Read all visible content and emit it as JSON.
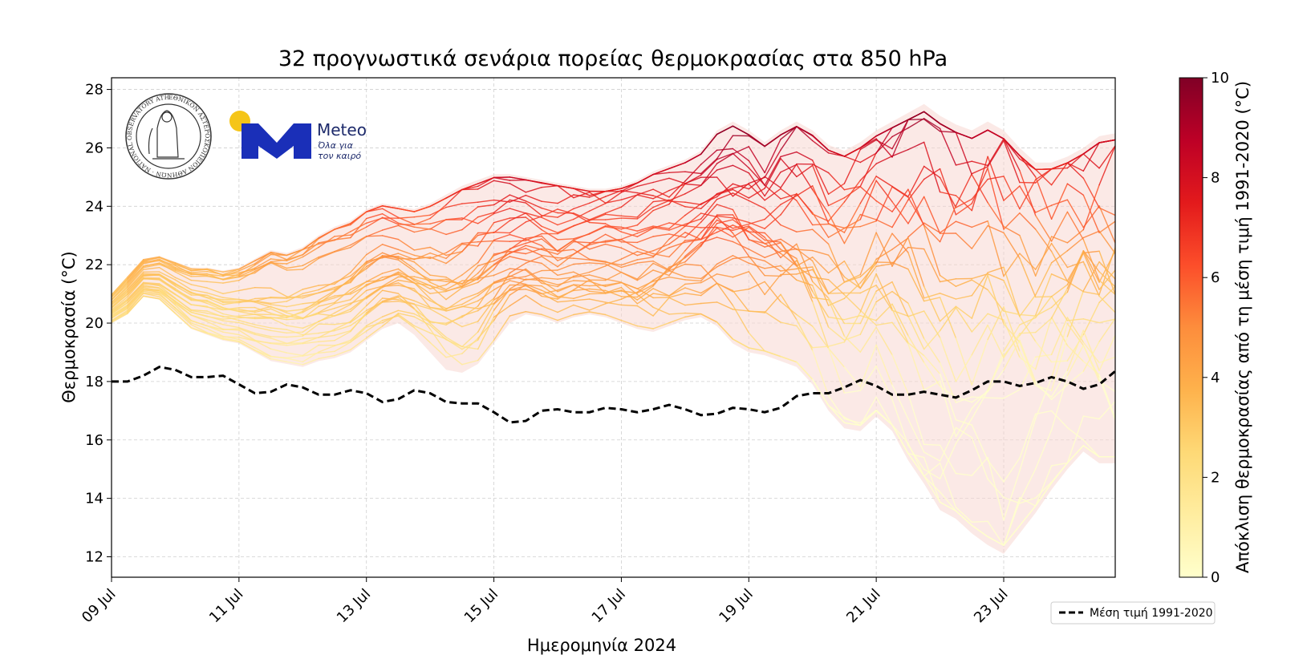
{
  "chart_data": {
    "type": "line",
    "title": "32 προγνωστικά σενάρια πορείας θερμοκρασίας στα 850 hPa",
    "xlabel": "Ημερομηνία 2024",
    "ylabel": "Θερμοκρασία (°C)",
    "x_start": "2024-07-09",
    "x_end": "2024-07-24T18:00",
    "xlim_days": [
      0,
      15.75
    ],
    "ylim": [
      11.3,
      28.4
    ],
    "y_ticks": [
      12,
      14,
      16,
      18,
      20,
      22,
      24,
      26,
      28
    ],
    "x_ticks": [
      {
        "day": 0,
        "label": "09 Jul"
      },
      {
        "day": 2,
        "label": "11 Jul"
      },
      {
        "day": 4,
        "label": "13 Jul"
      },
      {
        "day": 6,
        "label": "15 Jul"
      },
      {
        "day": 8,
        "label": "17 Jul"
      },
      {
        "day": 10,
        "label": "19 Jul"
      },
      {
        "day": 12,
        "label": "21 Jul"
      },
      {
        "day": 14,
        "label": "23 Jul"
      }
    ],
    "grid": true,
    "legend_position": "bottom-right, outside plot",
    "climatology": {
      "name": "Μέση τιμή 1991-2020",
      "style": "dashed",
      "color": "#000000",
      "x": [
        0,
        0.25,
        0.5,
        0.75,
        1,
        1.25,
        1.5,
        1.75,
        2,
        2.25,
        2.5,
        2.75,
        3,
        3.25,
        3.5,
        3.75,
        4,
        4.25,
        4.5,
        4.75,
        5,
        5.25,
        5.5,
        5.75,
        6,
        6.25,
        6.5,
        6.75,
        7,
        7.25,
        7.5,
        7.75,
        8,
        8.25,
        8.5,
        8.75,
        9,
        9.25,
        9.5,
        9.75,
        10,
        10.25,
        10.5,
        10.75,
        11,
        11.25,
        11.5,
        11.75,
        12,
        12.25,
        12.5,
        12.75,
        13,
        13.25,
        13.5,
        13.75,
        14,
        14.25,
        14.5,
        14.75,
        15,
        15.25,
        15.5,
        15.75
      ],
      "values": [
        18.0,
        18.0,
        18.2,
        18.5,
        18.4,
        18.15,
        18.15,
        18.2,
        17.9,
        17.6,
        17.65,
        17.9,
        17.8,
        17.55,
        17.55,
        17.7,
        17.6,
        17.3,
        17.4,
        17.7,
        17.6,
        17.3,
        17.25,
        17.25,
        16.95,
        16.6,
        16.65,
        17.0,
        17.05,
        16.95,
        16.95,
        17.1,
        17.05,
        16.95,
        17.05,
        17.2,
        17.05,
        16.85,
        16.9,
        17.1,
        17.05,
        16.95,
        17.1,
        17.5,
        17.6,
        17.6,
        17.8,
        18.05,
        17.85,
        17.55,
        17.55,
        17.65,
        17.55,
        17.45,
        17.7,
        18.0,
        18.0,
        17.85,
        17.95,
        18.15,
        18.0,
        17.75,
        17.9,
        18.35
      ]
    },
    "ensemble": {
      "members": 32,
      "colored_by": "deviation from 1991-2020 mean (°C)",
      "spread_shading": "#f8d7d2",
      "spread_min": [
        20.0,
        20.3,
        20.9,
        20.8,
        20.3,
        19.8,
        19.6,
        19.4,
        19.3,
        19.0,
        18.7,
        18.6,
        18.5,
        18.7,
        18.8,
        19.0,
        19.4,
        19.8,
        20.0,
        19.6,
        19.0,
        18.4,
        18.3,
        18.6,
        19.3,
        20.0,
        20.3,
        20.2,
        20.0,
        20.2,
        20.3,
        20.2,
        20.0,
        19.8,
        19.7,
        19.9,
        20.1,
        20.2,
        19.9,
        19.3,
        19.0,
        18.9,
        18.7,
        18.5,
        17.9,
        17.0,
        16.4,
        16.3,
        16.8,
        16.3,
        15.3,
        14.5,
        13.6,
        13.3,
        12.8,
        12.4,
        12.1,
        12.8,
        13.5,
        14.3,
        15.0,
        15.6,
        15.2,
        15.2
      ],
      "spread_max": [
        21.0,
        21.6,
        22.2,
        22.3,
        22.1,
        21.9,
        21.9,
        21.8,
        21.9,
        22.2,
        22.5,
        22.4,
        22.6,
        23.0,
        23.3,
        23.5,
        23.9,
        24.1,
        24.0,
        23.9,
        24.1,
        24.4,
        24.7,
        24.9,
        25.1,
        25.1,
        25.0,
        24.9,
        24.8,
        24.7,
        24.6,
        24.6,
        24.7,
        24.9,
        25.2,
        25.4,
        25.6,
        25.9,
        26.6,
        26.9,
        26.6,
        26.2,
        26.6,
        26.9,
        26.6,
        26.1,
        25.9,
        26.2,
        26.6,
        26.9,
        27.2,
        27.5,
        27.1,
        26.8,
        26.6,
        26.9,
        26.6,
        26.0,
        25.5,
        25.5,
        25.7,
        26.0,
        26.4,
        26.5
      ]
    },
    "colorbar": {
      "label": "Απόκλιση θερμοκρασίας από τη μέση τιμή 1991-2020 (°C)",
      "range": [
        0,
        10
      ],
      "ticks": [
        "0",
        "2",
        "4",
        "6",
        "8",
        "10"
      ],
      "colors": [
        "#ffffcc",
        "#ffeda0",
        "#fed976",
        "#feb24c",
        "#fd8d3c",
        "#fc4e2a",
        "#e31a1c",
        "#bd0026",
        "#800026"
      ]
    },
    "legend": [
      {
        "label": "Μέση τιμή 1991-2020",
        "style": "dashed"
      }
    ]
  },
  "logos": {
    "noa_ring_text": "ΕΘΝΙΚΟΝ ΑΣΤΕΡΟΣΚΟΠΕΙΟΝ ΑΘΗΝΩΝ · NATIONAL OBSERVATORY ATHENS",
    "meteo_name": "Meteo",
    "meteo_tagline_1": "Όλα για",
    "meteo_tagline_2": "τον καιρό",
    "meteo_blue": "#1a2fb8",
    "meteo_sun": "#f5c518"
  }
}
